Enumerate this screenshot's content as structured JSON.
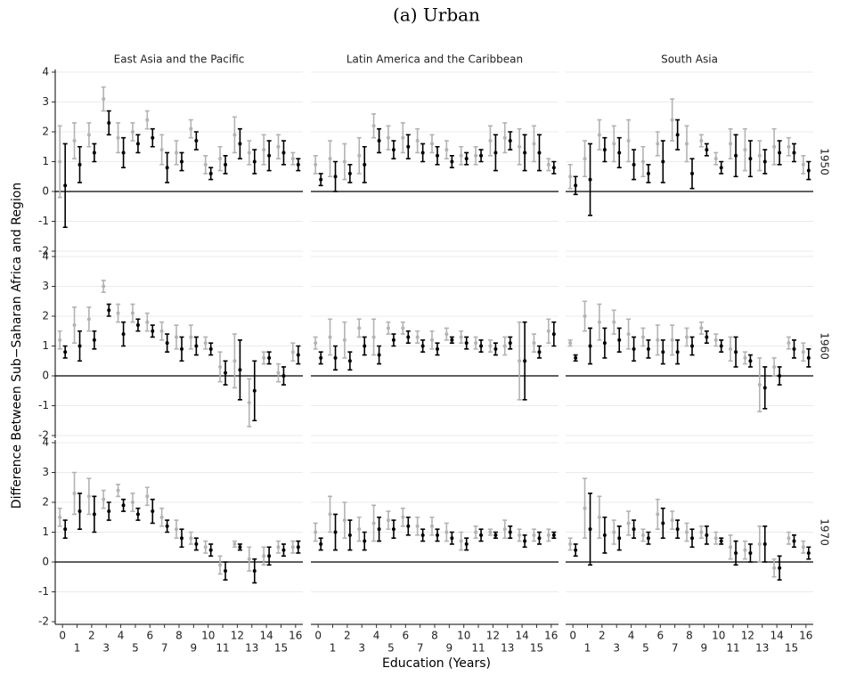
{
  "chart_data": {
    "type": "errorbar",
    "title": "(a) Urban",
    "xlabel": "Education (Years)",
    "ylabel": "Difference Between Sub−Saharan Africa and Region",
    "columns": [
      "East Asia and the Pacific",
      "Latin America and the Caribbean",
      "South Asia"
    ],
    "rows": [
      "1950",
      "1960",
      "1970"
    ],
    "xticks": [
      0,
      1,
      2,
      3,
      4,
      5,
      6,
      7,
      8,
      9,
      10,
      11,
      12,
      13,
      14,
      15,
      16
    ],
    "xlim": [
      -0.5,
      16.5
    ],
    "ylim": [
      -2,
      4
    ],
    "yticks": [
      -2,
      -1,
      0,
      1,
      2,
      3,
      4
    ],
    "grid": true,
    "panels": [
      [
        {
          "series": [
            {
              "color": "#b3b3b3",
              "values": [
                1.0,
                1.7,
                1.9,
                3.1,
                1.8,
                2.0,
                2.4,
                1.4,
                1.3,
                2.1,
                0.9,
                1.1,
                1.9,
                1.3,
                1.4,
                1.5,
                1.1
              ],
              "errors": [
                1.2,
                0.6,
                0.4,
                0.4,
                0.5,
                0.3,
                0.3,
                0.5,
                0.4,
                0.3,
                0.3,
                0.4,
                0.6,
                0.4,
                0.5,
                0.4,
                0.2
              ]
            },
            {
              "color": "#000000",
              "values": [
                0.2,
                0.9,
                1.3,
                2.3,
                1.3,
                1.6,
                1.8,
                0.8,
                1.0,
                1.7,
                0.6,
                0.9,
                1.6,
                1.0,
                1.2,
                1.3,
                0.9
              ],
              "errors": [
                1.4,
                0.6,
                0.3,
                0.4,
                0.5,
                0.3,
                0.3,
                0.5,
                0.3,
                0.3,
                0.2,
                0.3,
                0.5,
                0.4,
                0.5,
                0.4,
                0.2
              ]
            }
          ]
        },
        {
          "series": [
            {
              "color": "#b3b3b3",
              "values": [
                0.9,
                1.1,
                1.0,
                1.2,
                2.2,
                1.8,
                1.8,
                1.7,
                1.6,
                1.4,
                1.2,
                1.2,
                1.7,
                1.8,
                1.5,
                1.6,
                0.9
              ],
              "errors": [
                0.3,
                0.6,
                0.6,
                0.6,
                0.4,
                0.4,
                0.5,
                0.4,
                0.3,
                0.3,
                0.3,
                0.3,
                0.5,
                0.5,
                0.6,
                0.6,
                0.2
              ]
            },
            {
              "color": "#000000",
              "values": [
                0.4,
                0.5,
                0.6,
                0.9,
                1.7,
                1.4,
                1.5,
                1.3,
                1.2,
                1.0,
                1.1,
                1.2,
                1.3,
                1.7,
                1.3,
                1.3,
                0.8
              ],
              "errors": [
                0.2,
                0.5,
                0.3,
                0.6,
                0.4,
                0.3,
                0.4,
                0.3,
                0.3,
                0.2,
                0.2,
                0.2,
                0.6,
                0.3,
                0.6,
                0.6,
                0.2
              ]
            }
          ]
        },
        {
          "series": [
            {
              "color": "#b3b3b3",
              "values": [
                0.5,
                1.1,
                1.9,
                1.6,
                1.7,
                1.0,
                1.6,
                2.4,
                1.6,
                1.7,
                1.1,
                1.6,
                1.4,
                1.2,
                1.5,
                1.5,
                0.9
              ],
              "errors": [
                0.4,
                0.6,
                0.5,
                0.6,
                0.7,
                0.5,
                0.4,
                0.7,
                0.6,
                0.2,
                0.2,
                0.5,
                0.7,
                0.5,
                0.6,
                0.3,
                0.3
              ]
            },
            {
              "color": "#000000",
              "values": [
                0.2,
                0.4,
                1.4,
                1.3,
                0.9,
                0.6,
                1.0,
                1.9,
                0.6,
                1.4,
                0.8,
                1.2,
                1.1,
                1.0,
                1.3,
                1.3,
                0.7
              ],
              "errors": [
                0.3,
                1.2,
                0.4,
                0.5,
                0.5,
                0.3,
                0.7,
                0.5,
                0.5,
                0.2,
                0.2,
                0.7,
                0.6,
                0.4,
                0.4,
                0.3,
                0.3
              ]
            }
          ]
        }
      ],
      [
        {
          "series": [
            {
              "color": "#b3b3b3",
              "values": [
                1.2,
                1.7,
                1.9,
                3.0,
                2.1,
                2.1,
                1.8,
                1.5,
                1.3,
                1.3,
                1.1,
                0.3,
                0.5,
                -0.9,
                0.6,
                0.1,
                0.8
              ],
              "errors": [
                0.3,
                0.6,
                0.4,
                0.2,
                0.3,
                0.3,
                0.3,
                0.3,
                0.4,
                0.4,
                0.2,
                0.5,
                0.9,
                0.8,
                0.2,
                0.3,
                0.3
              ]
            },
            {
              "color": "#000000",
              "values": [
                0.8,
                1.0,
                1.2,
                2.2,
                1.4,
                1.7,
                1.5,
                1.1,
                0.9,
                1.0,
                0.9,
                0.1,
                0.2,
                -0.5,
                0.6,
                0.0,
                0.7
              ],
              "errors": [
                0.2,
                0.5,
                0.3,
                0.2,
                0.4,
                0.2,
                0.2,
                0.3,
                0.4,
                0.3,
                0.2,
                0.4,
                1.0,
                1.0,
                0.2,
                0.3,
                0.3
              ]
            }
          ]
        },
        {
          "series": [
            {
              "color": "#b3b3b3",
              "values": [
                1.1,
                1.3,
                1.2,
                1.6,
                1.3,
                1.6,
                1.6,
                1.3,
                1.2,
                1.4,
                1.3,
                1.1,
                1.0,
                1.0,
                0.5,
                1.1,
                1.5
              ],
              "errors": [
                0.2,
                0.6,
                0.6,
                0.3,
                0.6,
                0.2,
                0.2,
                0.2,
                0.3,
                0.2,
                0.2,
                0.2,
                0.2,
                0.3,
                1.3,
                0.3,
                0.4
              ]
            },
            {
              "color": "#000000",
              "values": [
                0.6,
                0.6,
                0.5,
                1.0,
                0.7,
                1.2,
                1.3,
                1.0,
                0.9,
                1.2,
                1.1,
                1.0,
                0.9,
                1.1,
                0.5,
                0.8,
                1.4
              ],
              "errors": [
                0.2,
                0.4,
                0.3,
                0.3,
                0.3,
                0.2,
                0.2,
                0.2,
                0.2,
                0.1,
                0.2,
                0.2,
                0.2,
                0.2,
                1.3,
                0.2,
                0.4
              ]
            }
          ]
        },
        {
          "series": [
            {
              "color": "#b3b3b3",
              "values": [
                1.1,
                2.0,
                1.8,
                1.8,
                1.4,
                1.3,
                1.2,
                1.2,
                1.3,
                1.6,
                1.2,
                0.9,
                0.6,
                -0.3,
                0.3,
                1.1,
                0.8
              ],
              "errors": [
                0.1,
                0.5,
                0.6,
                0.4,
                0.5,
                0.3,
                0.5,
                0.5,
                0.3,
                0.2,
                0.2,
                0.4,
                0.2,
                0.9,
                0.3,
                0.2,
                0.3
              ]
            },
            {
              "color": "#000000",
              "values": [
                0.6,
                1.0,
                1.1,
                1.2,
                0.9,
                0.9,
                0.8,
                0.8,
                1.0,
                1.3,
                1.0,
                0.8,
                0.5,
                -0.4,
                0.0,
                0.9,
                0.6
              ],
              "errors": [
                0.1,
                0.6,
                0.5,
                0.4,
                0.4,
                0.3,
                0.4,
                0.4,
                0.3,
                0.2,
                0.2,
                0.5,
                0.2,
                0.7,
                0.3,
                0.3,
                0.3
              ]
            }
          ]
        }
      ],
      [
        {
          "series": [
            {
              "color": "#b3b3b3",
              "values": [
                1.5,
                2.3,
                2.2,
                2.1,
                2.4,
                2.0,
                2.2,
                1.5,
                1.1,
                0.8,
                0.5,
                -0.1,
                0.6,
                0.1,
                0.2,
                0.5,
                0.5
              ],
              "errors": [
                0.3,
                0.7,
                0.6,
                0.3,
                0.2,
                0.3,
                0.3,
                0.3,
                0.3,
                0.2,
                0.2,
                0.3,
                0.1,
                0.4,
                0.3,
                0.2,
                0.2
              ]
            },
            {
              "color": "#000000",
              "values": [
                1.1,
                1.7,
                1.6,
                1.7,
                1.9,
                1.6,
                1.7,
                1.2,
                0.8,
                0.6,
                0.4,
                -0.3,
                0.5,
                -0.3,
                0.2,
                0.4,
                0.5
              ],
              "errors": [
                0.3,
                0.6,
                0.6,
                0.3,
                0.2,
                0.2,
                0.4,
                0.2,
                0.3,
                0.2,
                0.2,
                0.3,
                0.1,
                0.4,
                0.3,
                0.2,
                0.2
              ]
            }
          ]
        },
        {
          "series": [
            {
              "color": "#b3b3b3",
              "values": [
                1.0,
                1.6,
                1.4,
                1.1,
                1.3,
                1.4,
                1.5,
                1.2,
                1.2,
                1.0,
                0.7,
                1.0,
                1.0,
                1.1,
                0.9,
                0.9,
                0.9
              ],
              "errors": [
                0.3,
                0.6,
                0.6,
                0.4,
                0.6,
                0.3,
                0.3,
                0.3,
                0.3,
                0.3,
                0.3,
                0.2,
                0.1,
                0.3,
                0.2,
                0.2,
                0.2
              ]
            },
            {
              "color": "#000000",
              "values": [
                0.6,
                1.0,
                0.9,
                0.7,
                1.1,
                1.1,
                1.2,
                0.9,
                0.9,
                0.8,
                0.6,
                0.9,
                0.9,
                1.0,
                0.7,
                0.8,
                0.9
              ],
              "errors": [
                0.2,
                0.6,
                0.5,
                0.3,
                0.4,
                0.3,
                0.3,
                0.2,
                0.2,
                0.2,
                0.2,
                0.2,
                0.1,
                0.2,
                0.2,
                0.2,
                0.1
              ]
            }
          ]
        },
        {
          "series": [
            {
              "color": "#b3b3b3",
              "values": [
                0.6,
                1.8,
                1.5,
                1.0,
                1.3,
                0.9,
                1.6,
                1.4,
                1.0,
                1.0,
                0.8,
                0.5,
                0.4,
                0.6,
                -0.2,
                0.8,
                0.5
              ],
              "errors": [
                0.2,
                1.0,
                0.7,
                0.4,
                0.4,
                0.2,
                0.5,
                0.3,
                0.3,
                0.2,
                0.2,
                0.4,
                0.3,
                0.6,
                0.3,
                0.2,
                0.2
              ]
            },
            {
              "color": "#000000",
              "values": [
                0.4,
                1.1,
                0.9,
                0.8,
                1.1,
                0.8,
                1.3,
                1.1,
                0.8,
                0.9,
                0.7,
                0.3,
                0.3,
                0.6,
                -0.2,
                0.7,
                0.3
              ],
              "errors": [
                0.2,
                1.2,
                0.6,
                0.4,
                0.3,
                0.2,
                0.5,
                0.3,
                0.3,
                0.3,
                0.1,
                0.4,
                0.3,
                0.6,
                0.4,
                0.2,
                0.2
              ]
            }
          ]
        }
      ]
    ]
  }
}
